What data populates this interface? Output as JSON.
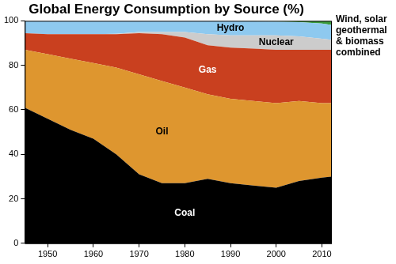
{
  "chart_data": {
    "type": "area",
    "title": "Global Energy Consumption by Source (%)",
    "stacked": true,
    "grid": false,
    "x": [
      1945,
      1950,
      1955,
      1960,
      1965,
      1970,
      1975,
      1980,
      1985,
      1990,
      1995,
      2000,
      2005,
      2010,
      2012
    ],
    "xlim": [
      1945,
      2012
    ],
    "xticks": [
      1950,
      1960,
      1970,
      1980,
      1990,
      2000,
      2010
    ],
    "ylim": [
      0,
      100
    ],
    "yticks": [
      0,
      20,
      40,
      60,
      80,
      100
    ],
    "series": [
      {
        "name": "Coal",
        "color": "#000000",
        "values": [
          61,
          56,
          51,
          47,
          40,
          31,
          27,
          27,
          29,
          27,
          26,
          25,
          28,
          29.5,
          30
        ]
      },
      {
        "name": "Oil",
        "color": "#de962f",
        "values": [
          26,
          29,
          32,
          34,
          39,
          45,
          46,
          43,
          38,
          38,
          38,
          38,
          36,
          33.5,
          33
        ]
      },
      {
        "name": "Gas",
        "color": "#c9401f",
        "values": [
          7.5,
          9,
          11,
          13,
          15,
          18.5,
          21,
          22.5,
          22,
          23,
          23.5,
          24,
          23,
          24,
          24
        ]
      },
      {
        "name": "Nuclear",
        "color": "#cccccc",
        "values": [
          0,
          0,
          0,
          0,
          0.2,
          0.5,
          1,
          2.5,
          5,
          5.5,
          6,
          6.5,
          6,
          5,
          4.5
        ]
      },
      {
        "name": "Hydro",
        "color": "#8ec9ef",
        "values": [
          5.5,
          6,
          6,
          6,
          5.8,
          5,
          5,
          5,
          6,
          6.4,
          6.3,
          6.2,
          6.4,
          6.8,
          6.7
        ]
      },
      {
        "name": "Wind, solar geothermal & biomass combined",
        "color": "#3a9a3a",
        "values": [
          0,
          0,
          0,
          0,
          0,
          0,
          0,
          0,
          0,
          0.1,
          0.2,
          0.3,
          0.6,
          1.2,
          1.8
        ]
      }
    ]
  }
}
